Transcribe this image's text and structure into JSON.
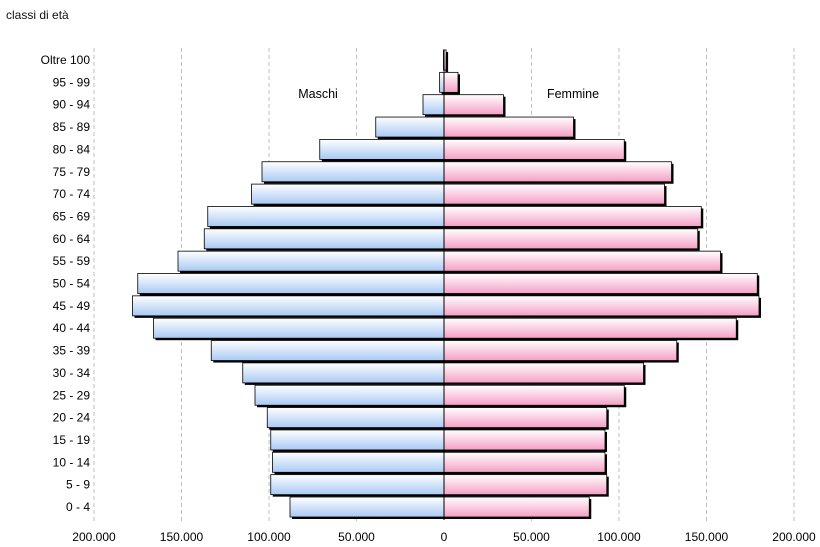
{
  "chart_data": {
    "type": "bar",
    "orientation": "horizontal-population-pyramid",
    "title": "classi di età",
    "categories": [
      "0 - 4",
      "5 - 9",
      "10 - 14",
      "15 - 19",
      "20 - 24",
      "25 - 29",
      "30 - 34",
      "35 - 39",
      "40 - 44",
      "45 - 49",
      "50 - 54",
      "55 - 59",
      "60 - 64",
      "65 - 69",
      "70 - 74",
      "75 - 79",
      "80 - 84",
      "85 - 89",
      "90 - 94",
      "95 - 99",
      "Oltre 100"
    ],
    "series": [
      {
        "name": "Maschi",
        "side": "left",
        "values": [
          88000,
          99000,
          98000,
          99000,
          101000,
          108000,
          115000,
          133000,
          166000,
          178000,
          175000,
          152000,
          137000,
          135000,
          110000,
          104000,
          71000,
          39000,
          12000,
          2500,
          300
        ]
      },
      {
        "name": "Femmine",
        "side": "right",
        "values": [
          83000,
          93000,
          92000,
          92000,
          93000,
          103000,
          114000,
          133000,
          167000,
          180000,
          179000,
          158000,
          145000,
          147000,
          126000,
          130000,
          103000,
          74000,
          34000,
          8000,
          1200
        ]
      }
    ],
    "xlim": [
      -200000,
      200000
    ],
    "xticks": [
      -200000,
      -150000,
      -100000,
      -50000,
      0,
      50000,
      100000,
      150000,
      200000
    ],
    "xtick_labels": [
      "200.000",
      "150.000",
      "100.000",
      "50.000",
      "0",
      "50.000",
      "100.000",
      "150.000",
      "200.000"
    ],
    "grid": "vertical-dashed",
    "colors": {
      "male_light": "#ffffff",
      "male_dark": "#a9c9f4",
      "female_light": "#ffffff",
      "female_dark": "#f59fc5",
      "shadow": "#000000",
      "grid": "#bfbfbf"
    }
  }
}
